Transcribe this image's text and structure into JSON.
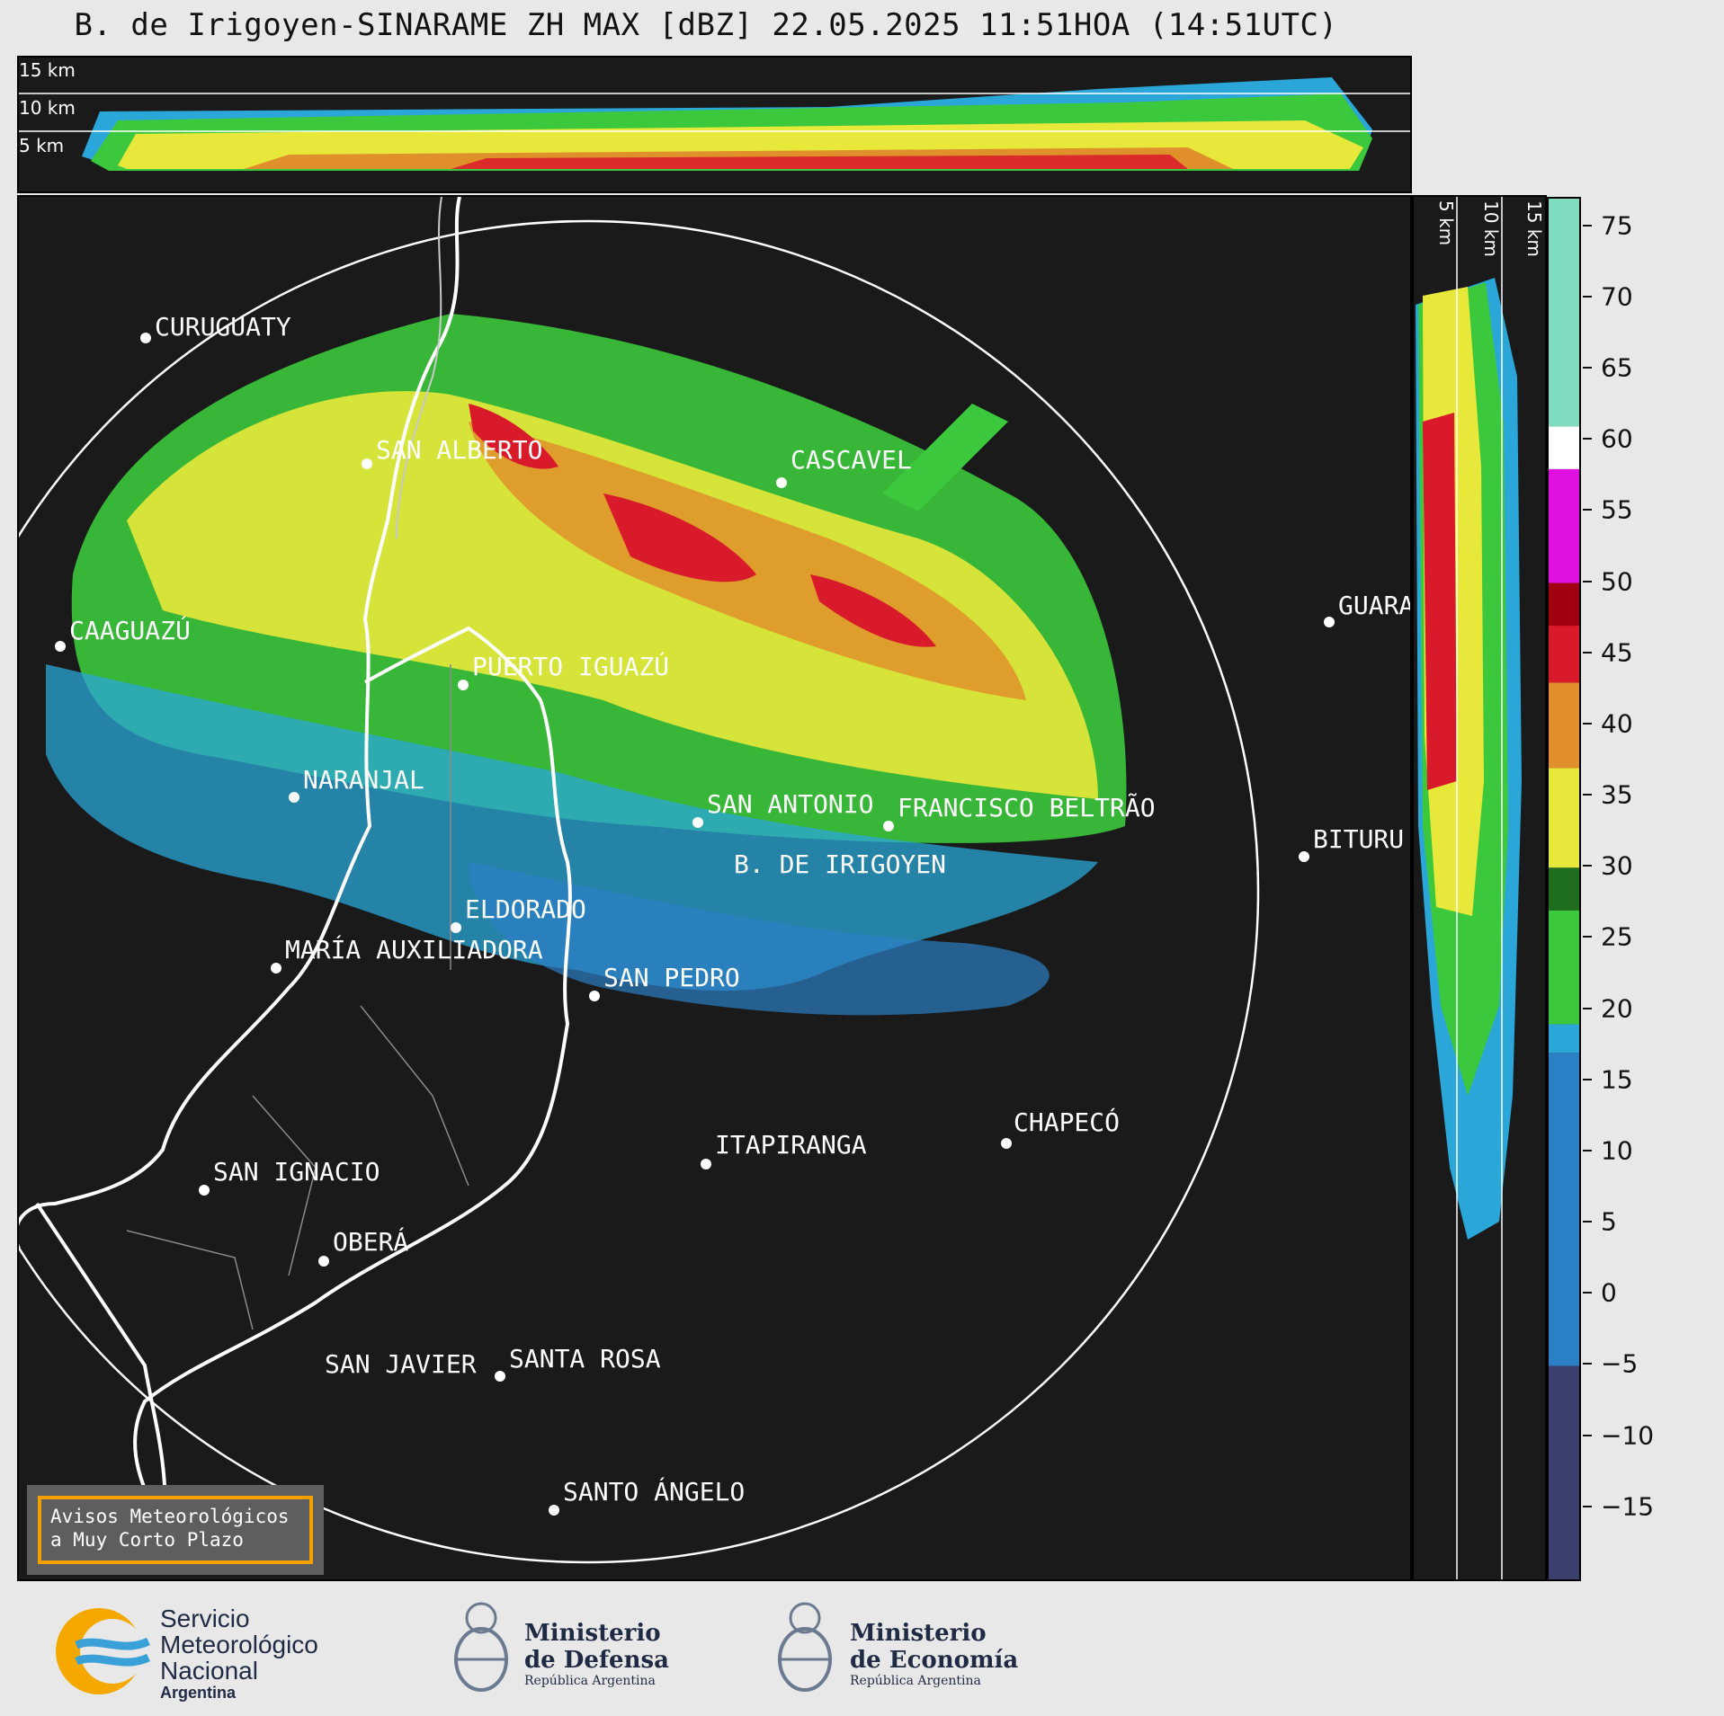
{
  "title": "B. de Irigoyen-SINARAME ZH MAX [dBZ] 22.05.2025 11:51HOA (14:51UTC)",
  "top_panel": {
    "altitude_labels": [
      "15 km",
      "10 km",
      "5 km"
    ]
  },
  "side_panel": {
    "altitude_labels": [
      "5 km",
      "10 km",
      "15 km"
    ]
  },
  "cities": [
    {
      "name": "CURUGUATY"
    },
    {
      "name": "SAN ALBERTO"
    },
    {
      "name": "CASCAVEL"
    },
    {
      "name": "CAAGUAZÚ"
    },
    {
      "name": "GUARA"
    },
    {
      "name": "PUERTO IGUAZÚ"
    },
    {
      "name": "NARANJAL"
    },
    {
      "name": "SAN ANTONIO"
    },
    {
      "name": "FRANCISCO BELTRÃO"
    },
    {
      "name": "BITURU"
    },
    {
      "name": "B. DE IRIGOYEN"
    },
    {
      "name": "ELDORADO"
    },
    {
      "name": "MARÍA AUXILIADORA"
    },
    {
      "name": "SAN PEDRO"
    },
    {
      "name": "CHAPECÓ"
    },
    {
      "name": "ITAPIRANGA"
    },
    {
      "name": "SAN IGNACIO"
    },
    {
      "name": "OBERÁ"
    },
    {
      "name": "SAN JAVIER"
    },
    {
      "name": "SANTA ROSA"
    },
    {
      "name": "SANTO ÁNGELO"
    }
  ],
  "colorbar": {
    "unit": "dBZ",
    "range": [
      -20,
      77
    ],
    "ticks": [
      "75",
      "70",
      "65",
      "60",
      "55",
      "50",
      "45",
      "40",
      "35",
      "30",
      "25",
      "20",
      "15",
      "10",
      "5",
      "0",
      "−5",
      "−10",
      "−15"
    ],
    "tick_values": [
      75,
      70,
      65,
      60,
      55,
      50,
      45,
      40,
      35,
      30,
      25,
      20,
      15,
      10,
      5,
      0,
      -5,
      -10,
      -15
    ],
    "colors": {
      "low": "#3a3f6e",
      "blue": "#2b7fc4",
      "cyan": "#2aa7d8",
      "green": "#3cc83c",
      "darkgreen": "#1f6e1f",
      "yellow": "#e8e83a",
      "orange": "#e0902a",
      "red": "#d81a2a",
      "darkred": "#a00010",
      "magenta": "#e010e0",
      "white": "#ffffff",
      "mint": "#80dcc0"
    }
  },
  "avisos": {
    "line1": "Avisos Meteorológicos",
    "line2": "a Muy Corto Plazo"
  },
  "footer": {
    "smn_line1": "Servicio",
    "smn_line2": "Meteorológico",
    "smn_line3": "Nacional",
    "smn_line4": "Argentina",
    "defensa_line1": "Ministerio",
    "defensa_line2": "de Defensa",
    "defensa_line3": "República Argentina",
    "economia_line1": "Ministerio",
    "economia_line2": "de Economía",
    "economia_line3": "República Argentina"
  }
}
